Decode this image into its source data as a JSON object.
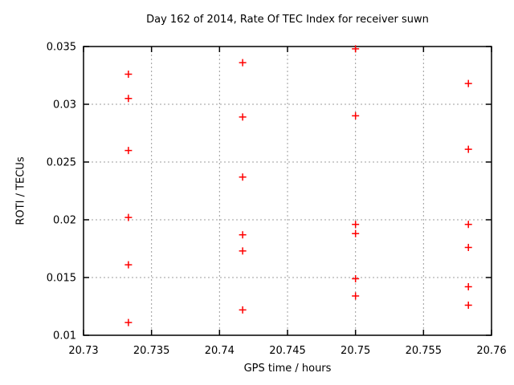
{
  "chart_data": {
    "type": "scatter",
    "title": "Day 162 of 2014, Rate Of TEC Index for receiver suwn",
    "xlabel": "GPS time / hours",
    "ylabel": "ROTI / TECUs",
    "xlim": [
      20.73,
      20.76
    ],
    "ylim": [
      0.01,
      0.035
    ],
    "xticks": {
      "values": [
        20.73,
        20.735,
        20.74,
        20.745,
        20.75,
        20.755,
        20.76
      ],
      "labels": [
        "20.73",
        "20.735",
        "20.74",
        "20.745",
        "20.75",
        "20.755",
        "20.76"
      ]
    },
    "yticks": {
      "values": [
        0.01,
        0.015,
        0.02,
        0.025,
        0.03,
        0.035
      ],
      "labels": [
        "0.01",
        "0.015",
        "0.02",
        "0.025",
        "0.03",
        "0.035"
      ]
    },
    "grid": true,
    "legend_position": "none",
    "marker": {
      "shape": "plus",
      "color": "#ff0000",
      "size": 9
    },
    "grid_color": "#9c9c9c",
    "axis_color": "#000000",
    "background_color": "#ffffff",
    "series": [
      {
        "name": "ROTI",
        "x": [
          20.7333,
          20.7333,
          20.7333,
          20.7333,
          20.7333,
          20.7333,
          20.7417,
          20.7417,
          20.7417,
          20.7417,
          20.7417,
          20.7417,
          20.75,
          20.75,
          20.75,
          20.75,
          20.75,
          20.75,
          20.7583,
          20.7583,
          20.7583,
          20.7583,
          20.7583,
          20.7583
        ],
        "y": [
          0.0326,
          0.0305,
          0.026,
          0.0202,
          0.0161,
          0.0111,
          0.0336,
          0.0289,
          0.0237,
          0.0187,
          0.0173,
          0.0122,
          0.0348,
          0.029,
          0.0196,
          0.0188,
          0.0149,
          0.0134,
          0.0318,
          0.0261,
          0.0196,
          0.0176,
          0.0142,
          0.0126
        ]
      }
    ]
  }
}
